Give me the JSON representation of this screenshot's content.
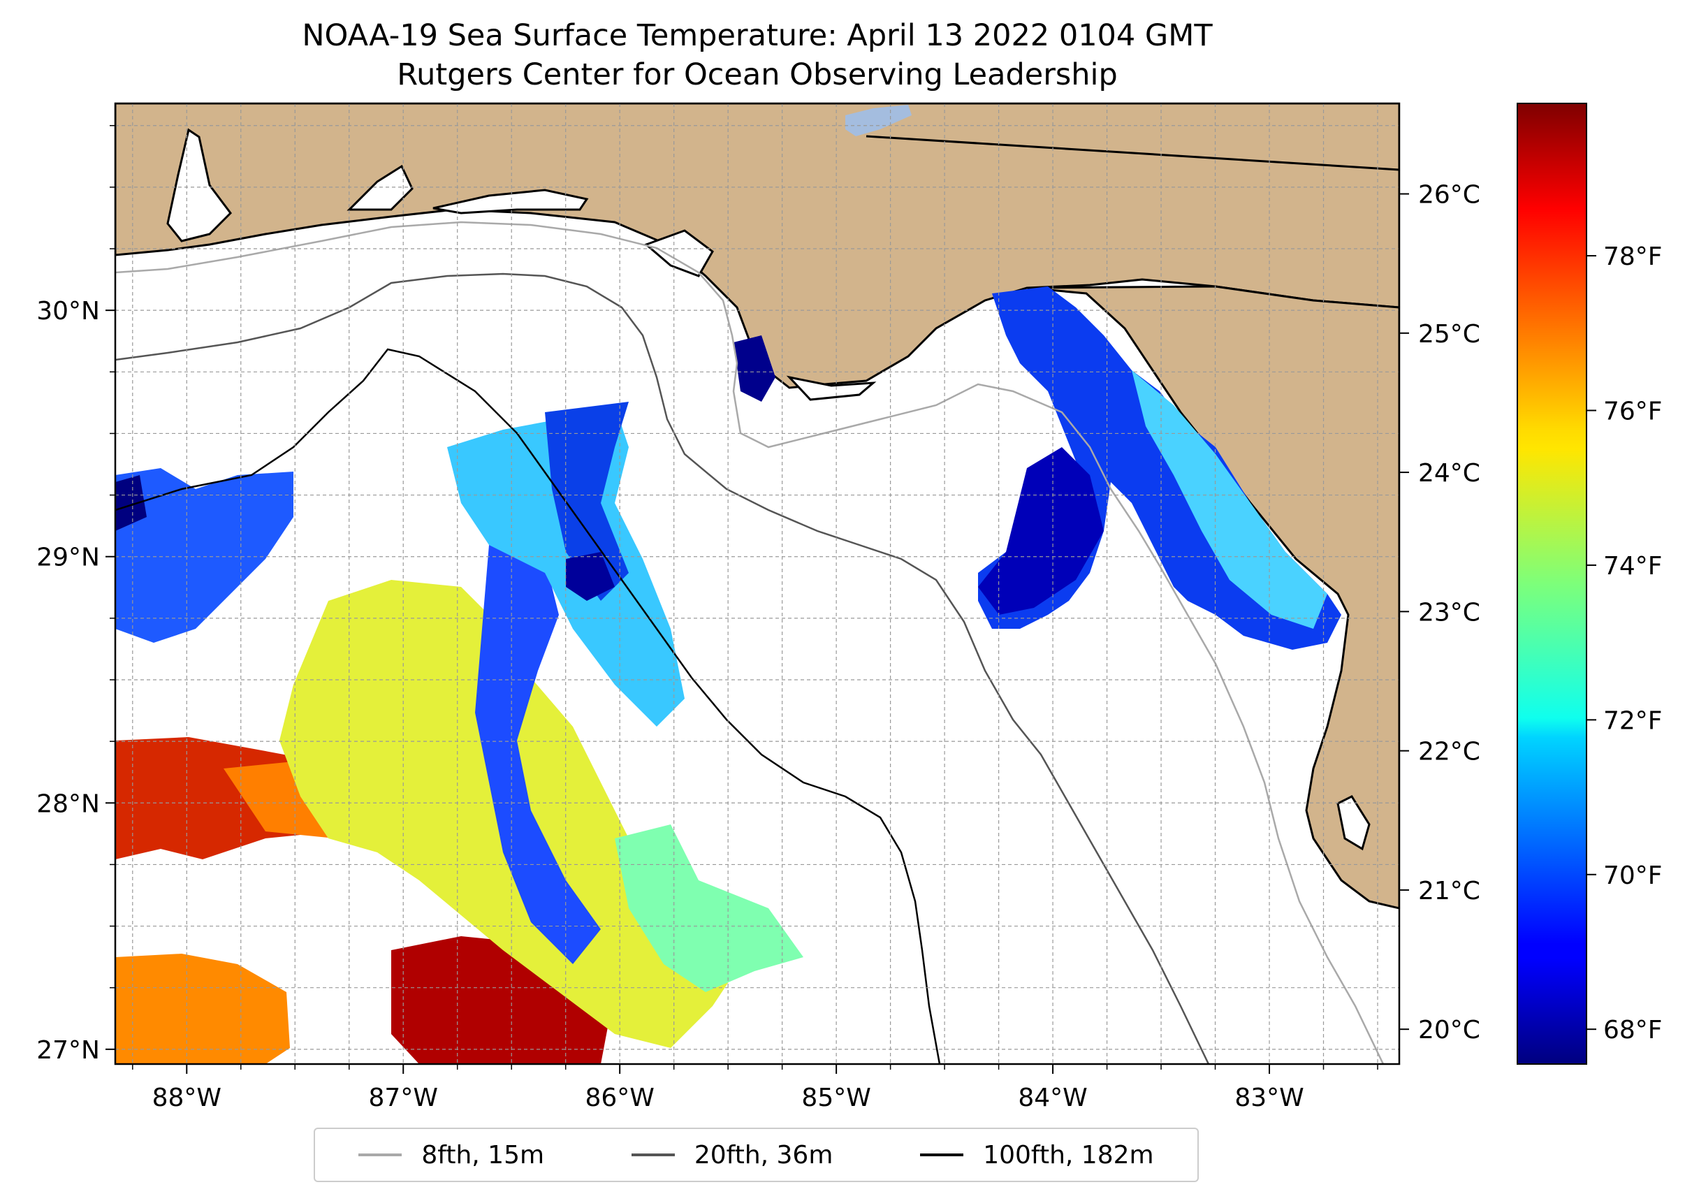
{
  "title": {
    "line1": "NOAA-19 Sea Surface Temperature: April 13 2022 0104 GMT",
    "line2": "Rutgers Center for Ocean Observing Leadership"
  },
  "map": {
    "extent": {
      "lon_min": -88.33,
      "lon_max": -82.4,
      "lat_min": 26.94,
      "lat_max": 30.84
    },
    "land_color": "#d2b48c",
    "grid": true,
    "xticks": [
      {
        "lon": -88,
        "label": "88°W"
      },
      {
        "lon": -87,
        "label": "87°W"
      },
      {
        "lon": -86,
        "label": "86°W"
      },
      {
        "lon": -85,
        "label": "85°W"
      },
      {
        "lon": -84,
        "label": "84°W"
      },
      {
        "lon": -83,
        "label": "83°W"
      }
    ],
    "yticks": [
      {
        "lat": 30,
        "label": "30°N"
      },
      {
        "lat": 29,
        "label": "29°N"
      },
      {
        "lat": 28,
        "label": "28°N"
      },
      {
        "lat": 27,
        "label": "27°N"
      }
    ]
  },
  "colorbar": {
    "colormap": "jet",
    "min_c": 19.75,
    "max_c": 26.65,
    "celsius_ticks": [
      {
        "value": 20,
        "label": "20°C"
      },
      {
        "value": 21,
        "label": "21°C"
      },
      {
        "value": 22,
        "label": "22°C"
      },
      {
        "value": 23,
        "label": "23°C"
      },
      {
        "value": 24,
        "label": "24°C"
      },
      {
        "value": 25,
        "label": "25°C"
      },
      {
        "value": 26,
        "label": "26°C"
      }
    ],
    "fahrenheit_ticks": [
      {
        "value": 68,
        "label": "68°F"
      },
      {
        "value": 70,
        "label": "70°F"
      },
      {
        "value": 72,
        "label": "72°F"
      },
      {
        "value": 74,
        "label": "74°F"
      },
      {
        "value": 76,
        "label": "76°F"
      },
      {
        "value": 78,
        "label": "78°F"
      }
    ]
  },
  "legend": {
    "items": [
      {
        "label": "8fth, 15m",
        "color": "#a9a9a9"
      },
      {
        "label": "20fth, 36m",
        "color": "#555555"
      },
      {
        "label": "100fth, 182m",
        "color": "#000000"
      }
    ]
  }
}
